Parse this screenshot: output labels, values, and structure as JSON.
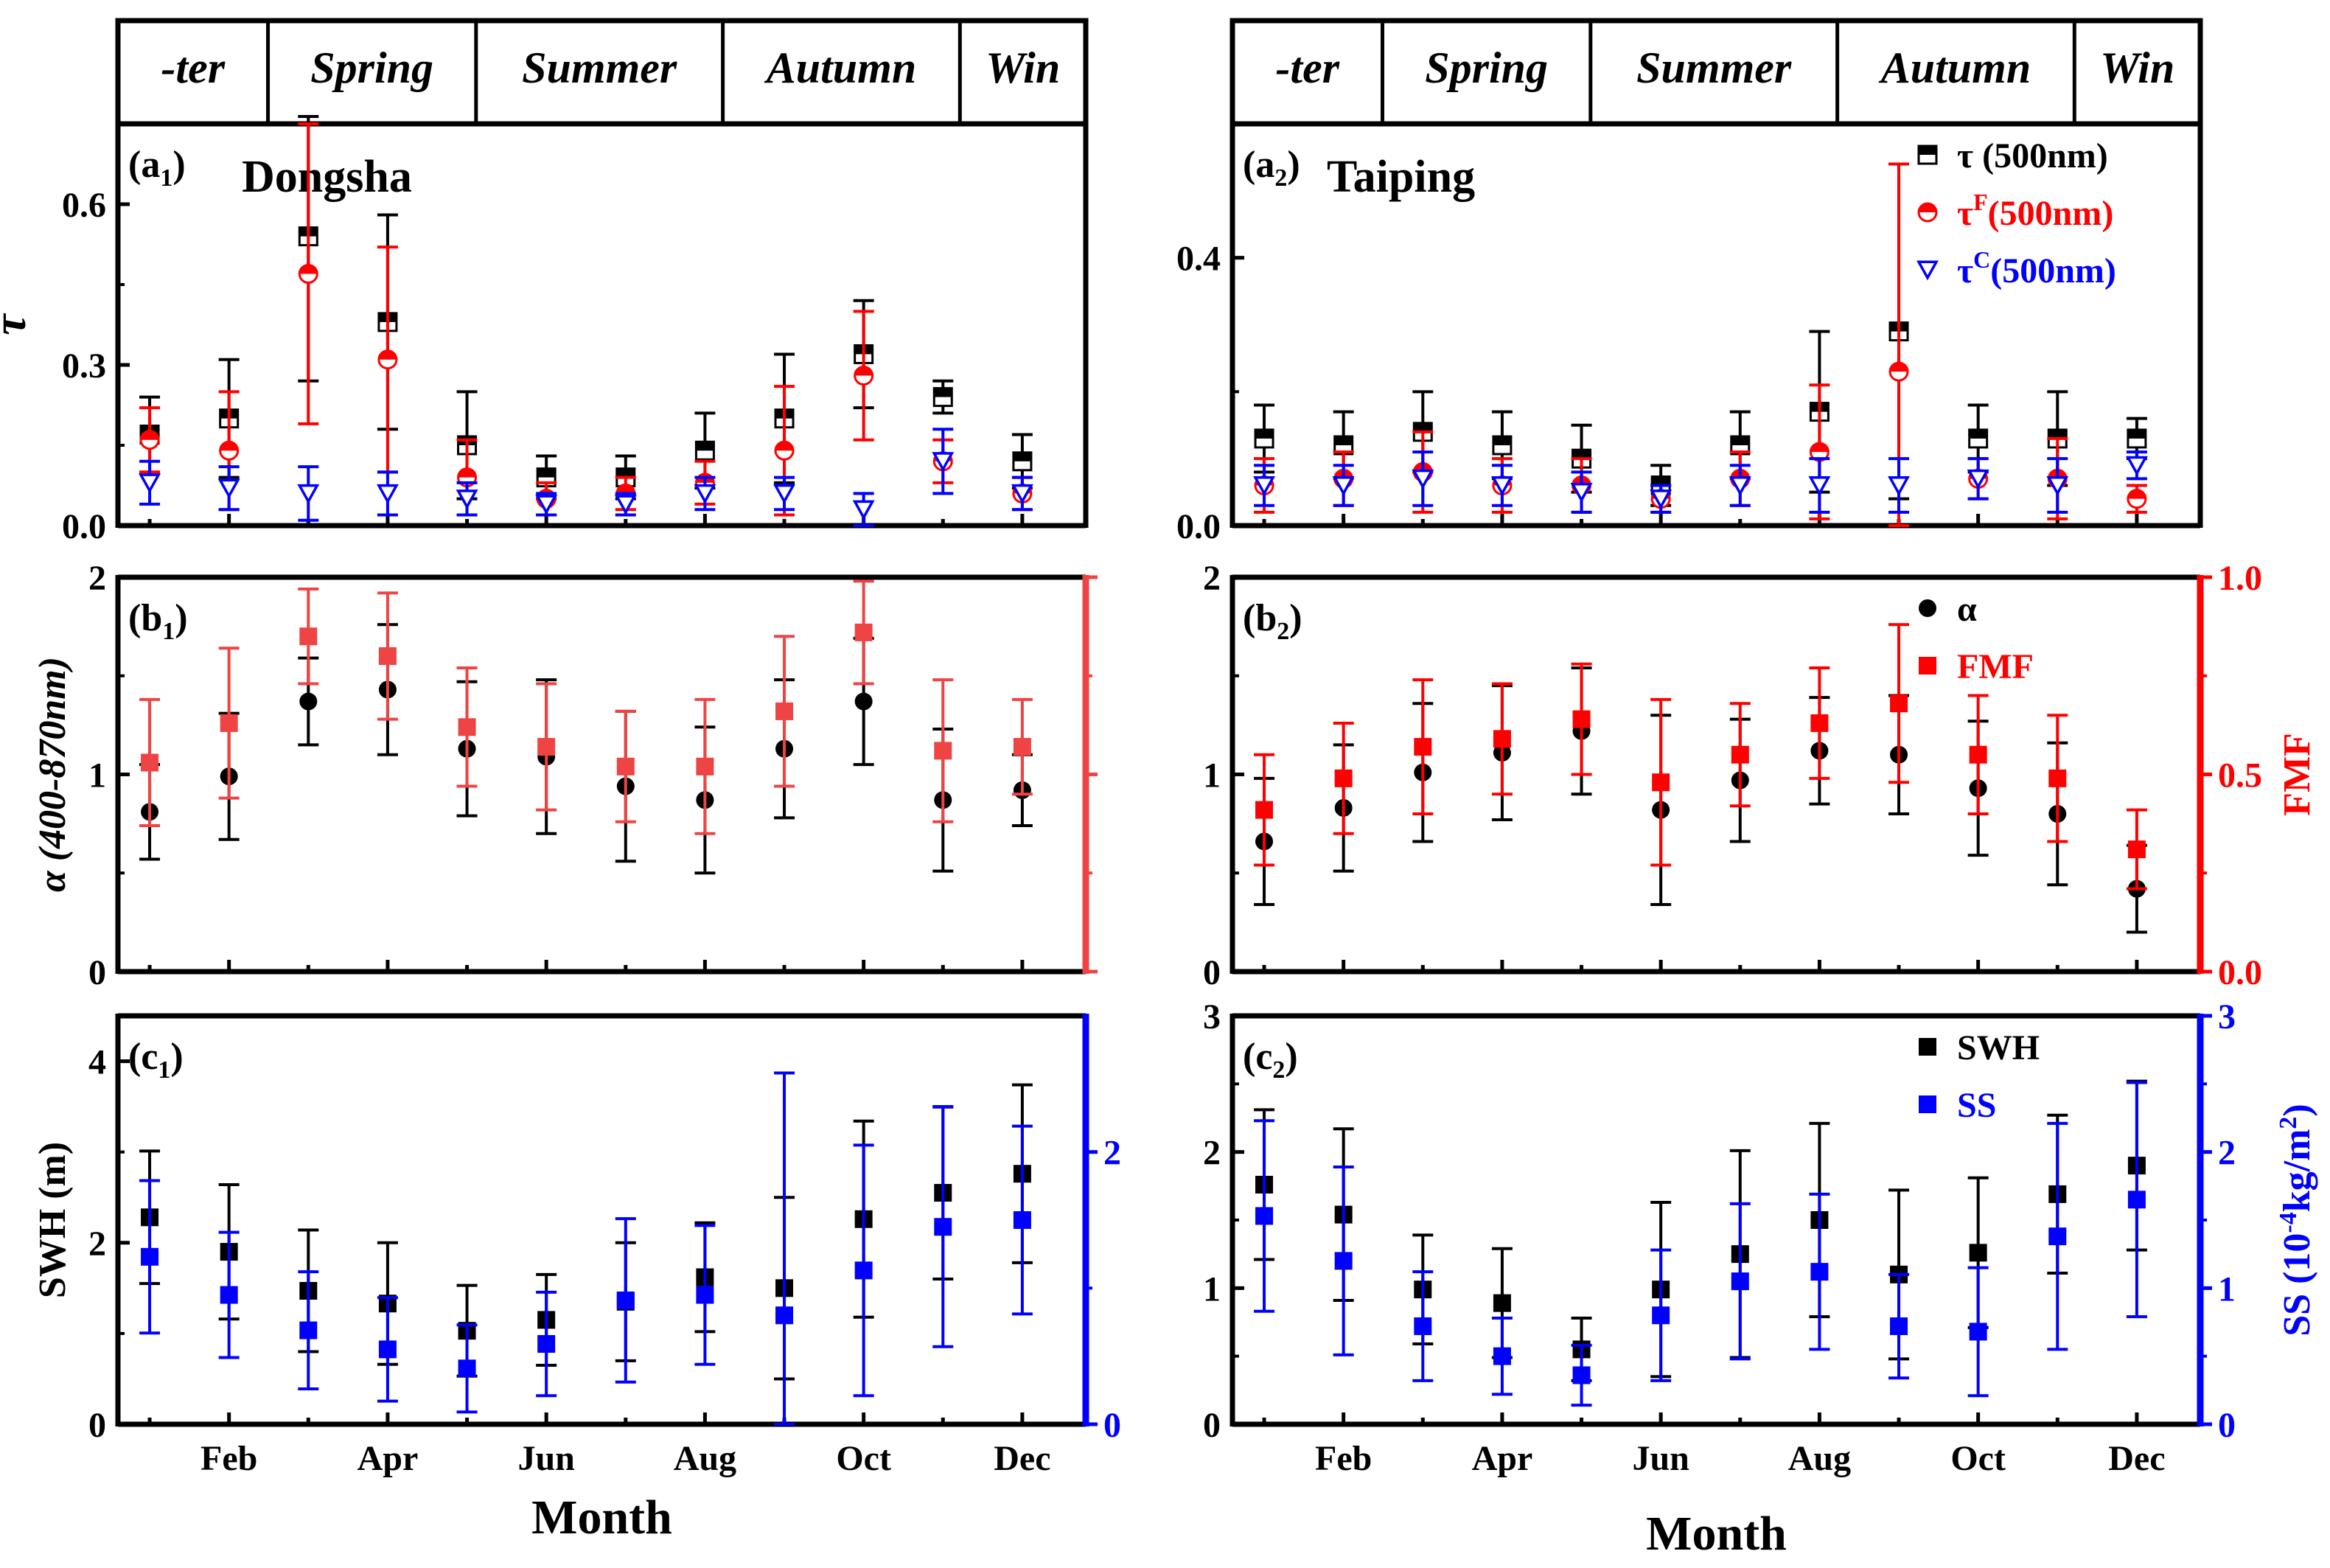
{
  "figure": {
    "month_axis_label": "Month",
    "month_ticks": [
      "Feb",
      "Apr",
      "Jun",
      "Aug",
      "Oct",
      "Dec"
    ],
    "season_labels": [
      "-ter",
      "Spring",
      "Summer",
      "Autumn",
      "Win"
    ],
    "colors": {
      "black": "#000000",
      "red": "#ff0000",
      "light_red": "#ee4444",
      "blue": "#0000ff"
    }
  },
  "chart_data": [
    {
      "id": "a1",
      "type": "scatter",
      "panel_label": "a",
      "panel_sub": "1",
      "site": "Dongsha",
      "ylabel": "τ",
      "ylim": [
        0,
        0.75
      ],
      "yticks": [
        0.0,
        0.3,
        0.6
      ],
      "ytick_labels": [
        "0.0",
        "0.3",
        "0.6"
      ],
      "x": [
        1,
        2,
        3,
        4,
        5,
        6,
        7,
        8,
        9,
        10,
        11,
        12
      ],
      "series": [
        {
          "key": "tau",
          "marker": "half-square",
          "color": "#000000",
          "values": [
            0.17,
            0.2,
            0.54,
            0.38,
            0.15,
            0.09,
            0.09,
            0.14,
            0.2,
            0.32,
            0.24,
            0.12
          ],
          "errors": [
            0.07,
            0.11,
            0.27,
            0.2,
            0.1,
            0.04,
            0.04,
            0.07,
            0.12,
            0.1,
            0.03,
            0.05
          ]
        },
        {
          "key": "tauF",
          "marker": "half-circle",
          "color": "#ff0000",
          "values": [
            0.16,
            0.14,
            0.47,
            0.31,
            0.09,
            0.05,
            0.06,
            0.08,
            0.14,
            0.28,
            0.12,
            0.06
          ],
          "errors": [
            0.06,
            0.11,
            0.28,
            0.21,
            0.07,
            0.03,
            0.03,
            0.04,
            0.12,
            0.12,
            0.04,
            0.03
          ]
        },
        {
          "key": "tauC",
          "marker": "triangle-down",
          "color": "#0000ff",
          "values": [
            0.08,
            0.07,
            0.06,
            0.06,
            0.05,
            0.04,
            0.04,
            0.06,
            0.06,
            0.03,
            0.12,
            0.06
          ],
          "errors": [
            0.04,
            0.04,
            0.05,
            0.04,
            0.03,
            0.02,
            0.02,
            0.03,
            0.03,
            0.03,
            0.06,
            0.03
          ]
        }
      ]
    },
    {
      "id": "a2",
      "type": "scatter",
      "panel_label": "a",
      "panel_sub": "2",
      "site": "Taiping",
      "ylabel": "",
      "ylim": [
        0,
        0.6
      ],
      "yticks": [
        0.0,
        0.4
      ],
      "ytick_labels": [
        "0.0",
        "0.4"
      ],
      "x": [
        1,
        2,
        3,
        4,
        5,
        6,
        7,
        8,
        9,
        10,
        11,
        12
      ],
      "legend": [
        {
          "key": "tau",
          "text": "τ (500nm)",
          "sup": "",
          "color": "#000000",
          "marker": "half-square"
        },
        {
          "key": "tauF",
          "text": "τ",
          "sup": "F",
          "suffix": "(500nm)",
          "color": "#ff0000",
          "marker": "half-circle"
        },
        {
          "key": "tauC",
          "text": "τ",
          "sup": "C",
          "suffix": "(500nm)",
          "color": "#0000ff",
          "marker": "triangle-down"
        }
      ],
      "series": [
        {
          "key": "tau",
          "marker": "half-square",
          "color": "#000000",
          "values": [
            0.13,
            0.12,
            0.14,
            0.12,
            0.1,
            0.06,
            0.12,
            0.17,
            0.29,
            0.13,
            0.13,
            0.13
          ],
          "errors": [
            0.05,
            0.05,
            0.06,
            0.05,
            0.05,
            0.03,
            0.05,
            0.12,
            0.25,
            0.05,
            0.07,
            0.03
          ]
        },
        {
          "key": "tauF",
          "marker": "half-circle",
          "color": "#ff0000",
          "values": [
            0.06,
            0.07,
            0.08,
            0.06,
            0.06,
            0.04,
            0.07,
            0.11,
            0.23,
            0.07,
            0.07,
            0.04
          ],
          "errors": [
            0.04,
            0.04,
            0.06,
            0.04,
            0.04,
            0.02,
            0.04,
            0.1,
            0.31,
            0.03,
            0.06,
            0.02
          ]
        },
        {
          "key": "tauC",
          "marker": "triangle-down",
          "color": "#0000ff",
          "values": [
            0.06,
            0.06,
            0.07,
            0.06,
            0.05,
            0.04,
            0.06,
            0.06,
            0.06,
            0.07,
            0.06,
            0.09
          ],
          "errors": [
            0.03,
            0.03,
            0.04,
            0.03,
            0.03,
            0.02,
            0.03,
            0.04,
            0.04,
            0.03,
            0.04,
            0.02
          ]
        }
      ]
    },
    {
      "id": "b1",
      "type": "scatter",
      "panel_label": "b",
      "panel_sub": "1",
      "ylabel": "α (400-870nm)",
      "ylim": [
        0,
        2
      ],
      "yticks": [
        0,
        1,
        2
      ],
      "ytick_labels": [
        "0",
        "1",
        "2"
      ],
      "right_axis": {
        "color": "#ee4444",
        "ylim": [
          0,
          1
        ],
        "ticks": [
          0,
          0.5,
          1
        ],
        "show_labels": false
      },
      "x": [
        1,
        2,
        3,
        4,
        5,
        6,
        7,
        8,
        9,
        10,
        11,
        12
      ],
      "series": [
        {
          "key": "alpha",
          "marker": "circle",
          "color": "#000000",
          "axis": "left",
          "values": [
            0.81,
            0.99,
            1.37,
            1.43,
            1.13,
            1.09,
            0.94,
            0.87,
            1.13,
            1.37,
            0.87,
            0.92
          ],
          "errors": [
            0.24,
            0.32,
            0.22,
            0.33,
            0.34,
            0.39,
            0.38,
            0.37,
            0.35,
            0.32,
            0.36,
            0.18
          ]
        },
        {
          "key": "fmf",
          "marker": "square",
          "color": "#ee4444",
          "axis": "right",
          "values": [
            0.53,
            0.63,
            0.85,
            0.8,
            0.62,
            0.57,
            0.52,
            0.52,
            0.66,
            0.86,
            0.56,
            0.57
          ],
          "errors": [
            0.16,
            0.19,
            0.12,
            0.16,
            0.15,
            0.16,
            0.14,
            0.17,
            0.19,
            0.13,
            0.18,
            0.12
          ]
        }
      ]
    },
    {
      "id": "b2",
      "type": "scatter",
      "panel_label": "b",
      "panel_sub": "2",
      "ylabel": "",
      "ylim": [
        0,
        2
      ],
      "yticks": [
        0,
        1,
        2
      ],
      "ytick_labels": [
        "0",
        "1",
        "2"
      ],
      "right_axis": {
        "label": "FMF",
        "color": "#ff0000",
        "ylim": [
          0,
          1
        ],
        "ticks": [
          0,
          0.5,
          1
        ],
        "tick_labels": [
          "0.0",
          "0.5",
          "1.0"
        ],
        "show_labels": true
      },
      "x": [
        1,
        2,
        3,
        4,
        5,
        6,
        7,
        8,
        9,
        10,
        11,
        12
      ],
      "legend": [
        {
          "key": "alpha",
          "text": "α",
          "color": "#000000",
          "marker": "circle"
        },
        {
          "key": "fmf",
          "text": "FMF",
          "color": "#ff0000",
          "marker": "square"
        }
      ],
      "series": [
        {
          "key": "alpha",
          "marker": "circle",
          "color": "#000000",
          "axis": "left",
          "values": [
            0.66,
            0.83,
            1.01,
            1.11,
            1.22,
            0.82,
            0.97,
            1.12,
            1.1,
            0.93,
            0.8,
            0.42
          ],
          "errors": [
            0.32,
            0.32,
            0.35,
            0.34,
            0.32,
            0.48,
            0.31,
            0.27,
            0.3,
            0.34,
            0.36,
            0.22
          ]
        },
        {
          "key": "fmf",
          "marker": "square",
          "color": "#ff0000",
          "axis": "right",
          "values": [
            0.41,
            0.49,
            0.57,
            0.59,
            0.64,
            0.48,
            0.55,
            0.63,
            0.68,
            0.55,
            0.49,
            0.31
          ],
          "errors": [
            0.14,
            0.14,
            0.17,
            0.14,
            0.14,
            0.21,
            0.13,
            0.14,
            0.2,
            0.15,
            0.16,
            0.1
          ]
        }
      ]
    },
    {
      "id": "c1",
      "type": "scatter",
      "panel_label": "c",
      "panel_sub": "1",
      "ylabel": "SWH (m)",
      "ylim": [
        0,
        4.5
      ],
      "yticks": [
        0,
        2,
        4
      ],
      "ytick_labels": [
        "0",
        "2",
        "4"
      ],
      "right_axis": {
        "color": "#0000ff",
        "ylim": [
          0,
          3
        ],
        "ticks": [
          0,
          2
        ],
        "tick_labels": [
          "0",
          "2"
        ],
        "show_labels": true
      },
      "x": [
        1,
        2,
        3,
        4,
        5,
        6,
        7,
        8,
        9,
        10,
        11,
        12
      ],
      "series": [
        {
          "key": "swh",
          "marker": "square",
          "color": "#000000",
          "axis": "left",
          "values": [
            2.28,
            1.9,
            1.47,
            1.33,
            1.03,
            1.15,
            1.35,
            1.62,
            1.5,
            2.26,
            2.55,
            2.76
          ],
          "errors": [
            0.73,
            0.74,
            0.67,
            0.67,
            0.5,
            0.5,
            0.65,
            0.6,
            1.0,
            1.08,
            0.95,
            0.98
          ]
        },
        {
          "key": "ss",
          "marker": "square",
          "color": "#0000ff",
          "axis": "right",
          "values": [
            1.23,
            0.95,
            0.69,
            0.55,
            0.41,
            0.59,
            0.91,
            0.95,
            0.8,
            1.13,
            1.45,
            1.5
          ],
          "errors": [
            0.56,
            0.46,
            0.43,
            0.38,
            0.32,
            0.38,
            0.6,
            0.51,
            1.78,
            0.92,
            0.88,
            0.69
          ]
        }
      ]
    },
    {
      "id": "c2",
      "type": "scatter",
      "panel_label": "c",
      "panel_sub": "2",
      "ylabel": "",
      "ylim": [
        0,
        3
      ],
      "yticks": [
        0,
        1,
        2,
        3
      ],
      "ytick_labels": [
        "0",
        "1",
        "2",
        "3"
      ],
      "right_axis": {
        "label": "SS (10",
        "label_sup": "-4",
        "label_end": "kg/m",
        "label_sup2": "2",
        "label_close": ")",
        "color": "#0000ff",
        "ylim": [
          0,
          3
        ],
        "ticks": [
          0,
          1,
          2,
          3
        ],
        "tick_labels": [
          "0",
          "1",
          "2",
          "3"
        ],
        "show_labels": true
      },
      "x": [
        1,
        2,
        3,
        4,
        5,
        6,
        7,
        8,
        9,
        10,
        11,
        12
      ],
      "legend": [
        {
          "key": "swh",
          "text": "SWH",
          "color": "#000000",
          "marker": "square"
        },
        {
          "key": "ss",
          "text": "SS",
          "color": "#0000ff",
          "marker": "square"
        }
      ],
      "series": [
        {
          "key": "swh",
          "marker": "square",
          "color": "#000000",
          "axis": "left",
          "values": [
            1.76,
            1.54,
            0.99,
            0.89,
            0.55,
            0.99,
            1.25,
            1.5,
            1.1,
            1.26,
            1.69,
            1.9
          ],
          "errors": [
            0.55,
            0.63,
            0.4,
            0.4,
            0.23,
            0.64,
            0.76,
            0.71,
            0.62,
            0.55,
            0.58,
            0.62
          ]
        },
        {
          "key": "ss",
          "marker": "square",
          "color": "#0000ff",
          "axis": "right",
          "values": [
            1.53,
            1.2,
            0.72,
            0.5,
            0.36,
            0.8,
            1.05,
            1.12,
            0.72,
            0.68,
            1.38,
            1.65
          ],
          "errors": [
            0.7,
            0.69,
            0.4,
            0.28,
            0.22,
            0.48,
            0.57,
            0.57,
            0.38,
            0.47,
            0.83,
            0.86
          ]
        }
      ]
    }
  ]
}
